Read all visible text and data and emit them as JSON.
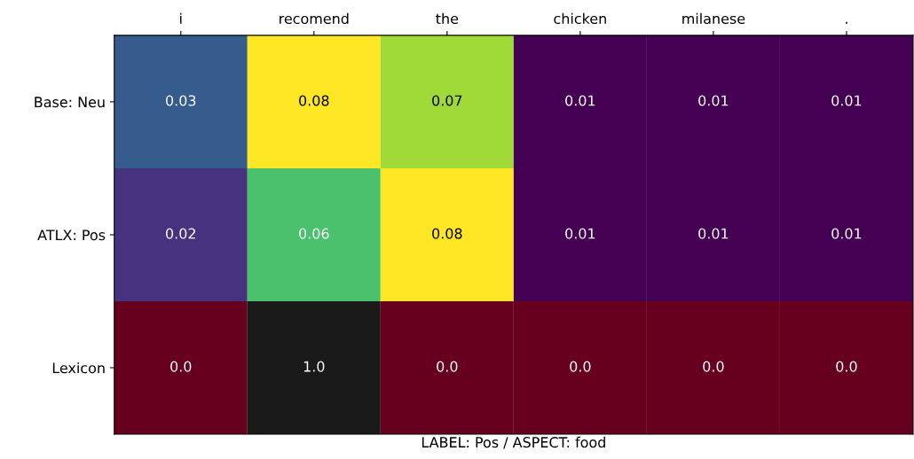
{
  "chart_data": {
    "type": "heatmap",
    "xlabel": "LABEL: Pos / ASPECT: food",
    "categories": [
      "i",
      "recomend",
      "the",
      "chicken",
      "milanese",
      "."
    ],
    "y_categories": [
      "Base: Neu",
      "ATLX: Pos",
      "Lexicon"
    ],
    "cells": [
      [
        0.03,
        0.08,
        0.07,
        0.01,
        0.01,
        0.01
      ],
      [
        0.02,
        0.06,
        0.08,
        0.01,
        0.01,
        0.01
      ],
      [
        0.0,
        1.0,
        0.0,
        0.0,
        0.0,
        0.0
      ]
    ],
    "cell_labels": [
      [
        "0.03",
        "0.08",
        "0.07",
        "0.01",
        "0.01",
        "0.01"
      ],
      [
        "0.02",
        "0.06",
        "0.08",
        "0.01",
        "0.01",
        "0.01"
      ],
      [
        "0.0",
        "1.0",
        "0.0",
        "0.0",
        "0.0",
        "0.0"
      ]
    ],
    "grid": false
  }
}
